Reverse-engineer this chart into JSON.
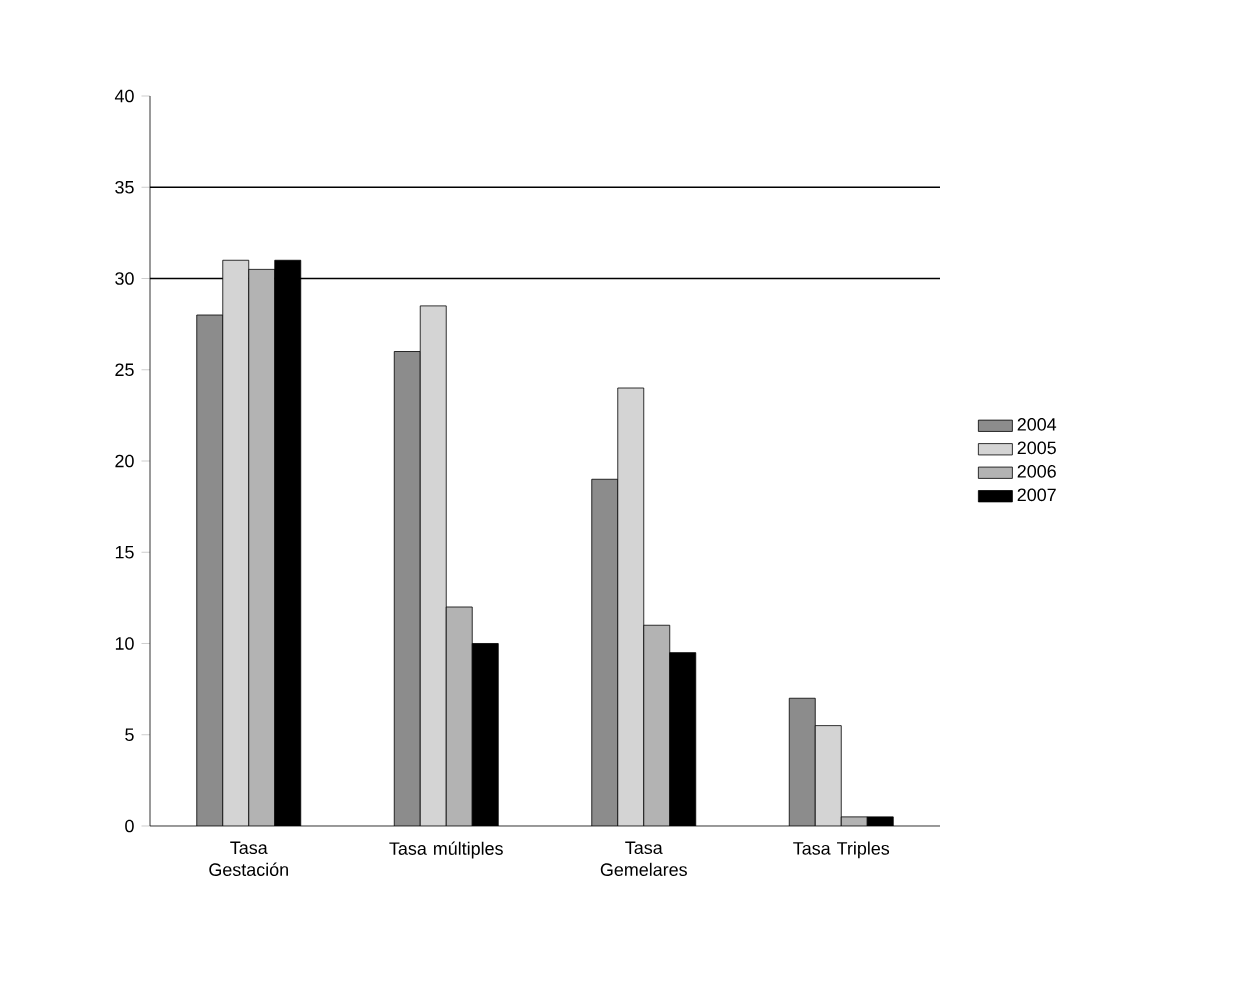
{
  "chart_data": {
    "type": "bar",
    "categories": [
      "Tasa Gestación",
      "Tasa múltiples",
      "Tasa Gemelares",
      "Tasa Triples"
    ],
    "series": [
      {
        "name": "2004",
        "color": "#8c8c8c",
        "values": [
          28,
          26,
          19,
          7
        ]
      },
      {
        "name": "2005",
        "color": "#d4d4d4",
        "values": [
          31,
          28.5,
          24,
          5.5
        ]
      },
      {
        "name": "2006",
        "color": "#b3b3b3",
        "values": [
          30.5,
          12,
          11,
          0.5
        ]
      },
      {
        "name": "2007",
        "color": "#000000",
        "values": [
          31,
          10,
          9.5,
          0.5
        ]
      }
    ],
    "ylim": [
      0,
      40
    ],
    "yticks": [
      0,
      5,
      10,
      15,
      20,
      25,
      30,
      35,
      40
    ],
    "ref_lines": [
      {
        "axis": "y",
        "value": 30
      },
      {
        "axis": "y",
        "value": 35
      }
    ],
    "legend": "right"
  }
}
